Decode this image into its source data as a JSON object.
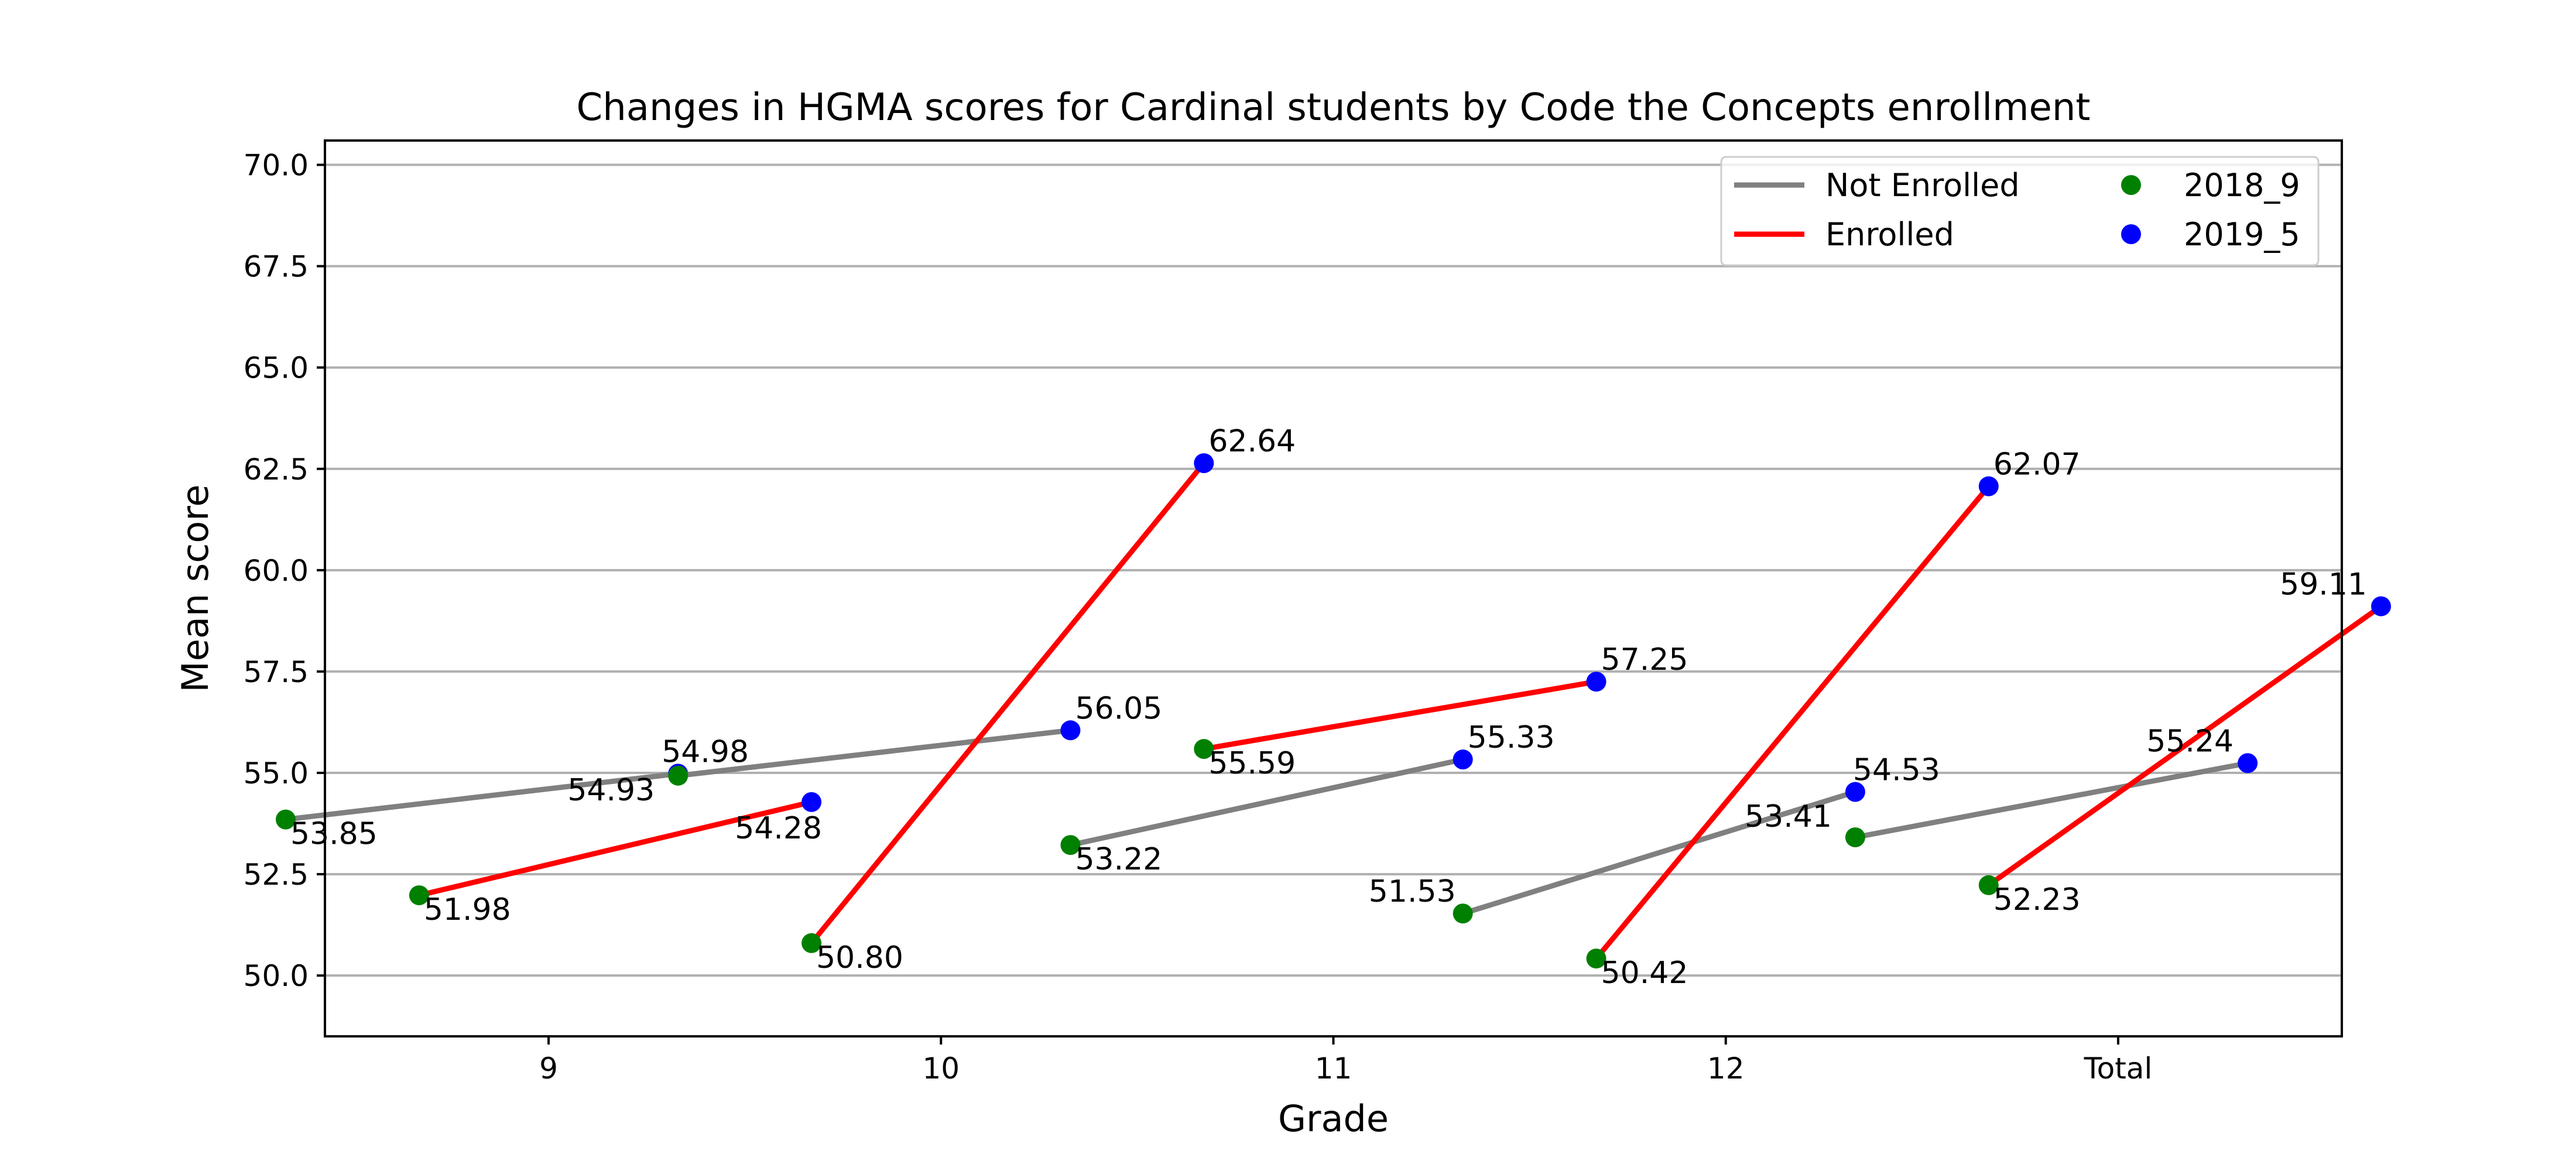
{
  "chart_data": {
    "type": "line",
    "title": "Changes in HGMA scores for Cardinal students by Code the Concepts enrollment",
    "xlabel": "Grade",
    "ylabel": "Mean score",
    "categories": [
      "9",
      "10",
      "11",
      "12",
      "Total"
    ],
    "ylim": [
      48.5,
      70.6
    ],
    "yticks": [
      "50.0",
      "52.5",
      "55.0",
      "57.5",
      "60.0",
      "62.5",
      "65.0",
      "67.5",
      "70.0"
    ],
    "grid": "horizontal",
    "legend_position": "top-right",
    "time_points": [
      "2018_9",
      "2019_5"
    ],
    "series": [
      {
        "name": "Not Enrolled",
        "color": "#808080",
        "x_offset": -0.67,
        "values_2018_9": [
          53.85,
          54.93,
          53.22,
          51.53,
          53.41
        ],
        "values_2019_5": [
          54.98,
          56.05,
          55.33,
          54.53,
          55.24
        ],
        "labels_2018_9": [
          "53.85",
          "54.93",
          "53.22",
          "51.53",
          "53.41"
        ],
        "labels_2019_5": [
          "54.98",
          "56.05",
          "55.33",
          "54.53",
          "55.24"
        ]
      },
      {
        "name": "Enrolled",
        "color": "#ff0000",
        "x_offset": -0.33,
        "values_2018_9": [
          51.98,
          50.8,
          55.59,
          50.42,
          52.23
        ],
        "values_2019_5": [
          54.28,
          62.64,
          57.25,
          62.07,
          59.11
        ],
        "labels_2018_9": [
          "51.98",
          "50.80",
          "55.59",
          "50.42",
          "52.23"
        ],
        "labels_2019_5": [
          "54.28",
          "62.64",
          "57.25",
          "62.07",
          "59.11"
        ]
      }
    ],
    "marker_colors": {
      "2018_9": "#008000",
      "2019_5": "#0000ff"
    },
    "legend": {
      "lines": [
        "Not Enrolled",
        "Enrolled"
      ],
      "markers": [
        "2018_9",
        "2019_5"
      ]
    }
  }
}
